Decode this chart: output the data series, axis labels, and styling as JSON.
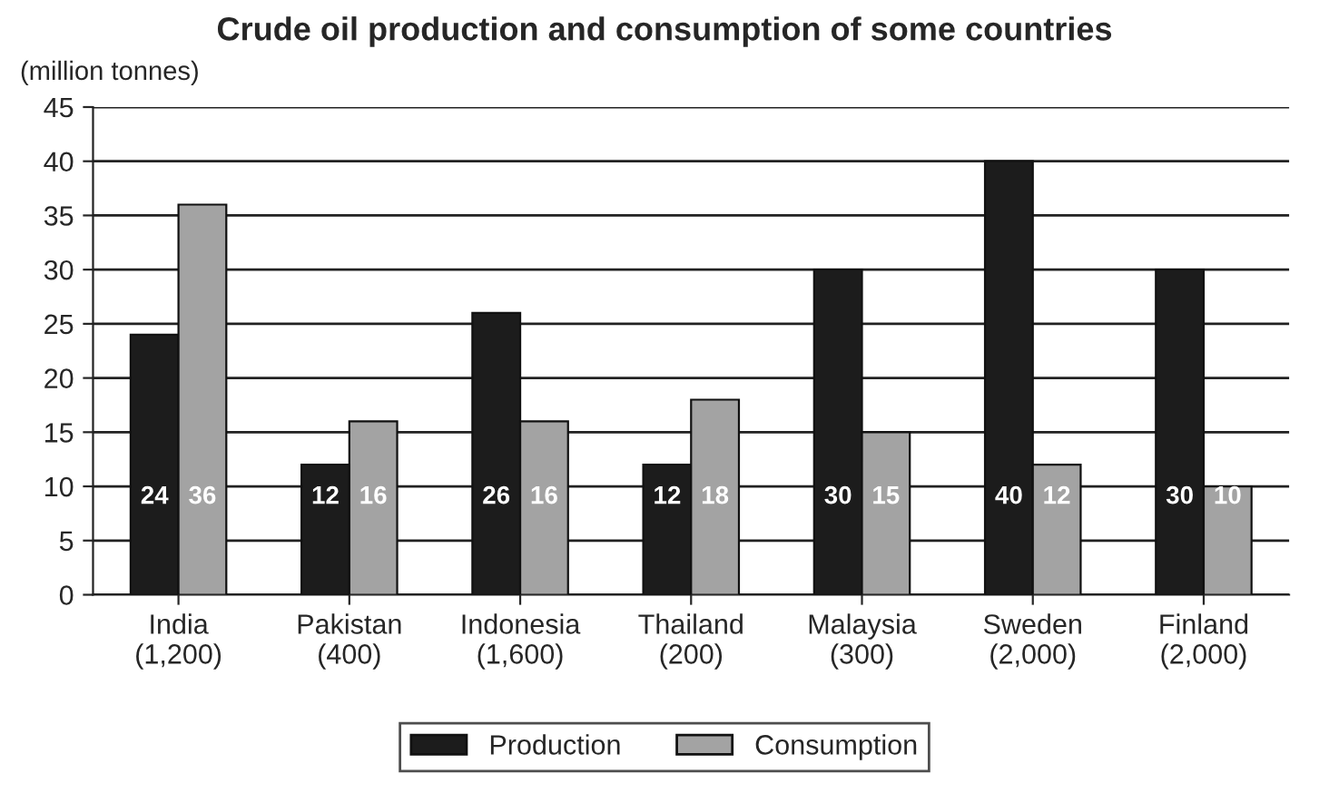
{
  "chart_data": {
    "type": "bar",
    "title": "Crude oil production and consumption of some countries",
    "ylabel": "(million tonnes)",
    "categories": [
      "India\n(1,200)",
      "Pakistan\n(400)",
      "Indonesia\n(1,600)",
      "Thailand\n(200)",
      "Malaysia\n(300)",
      "Sweden\n(2,000)",
      "Finland\n(2,000)"
    ],
    "series": [
      {
        "name": "Production",
        "color": "#1c1c1c",
        "values": [
          24,
          12,
          26,
          12,
          30,
          40,
          30
        ]
      },
      {
        "name": "Consumption",
        "color": "#a3a3a3",
        "values": [
          36,
          16,
          16,
          18,
          15,
          12,
          10
        ]
      }
    ],
    "ylim": [
      0,
      45
    ],
    "yticks": [
      0,
      5,
      10,
      15,
      20,
      25,
      30,
      35,
      40,
      45
    ],
    "grid": "y",
    "legend": "bottom",
    "data_labels": true
  }
}
